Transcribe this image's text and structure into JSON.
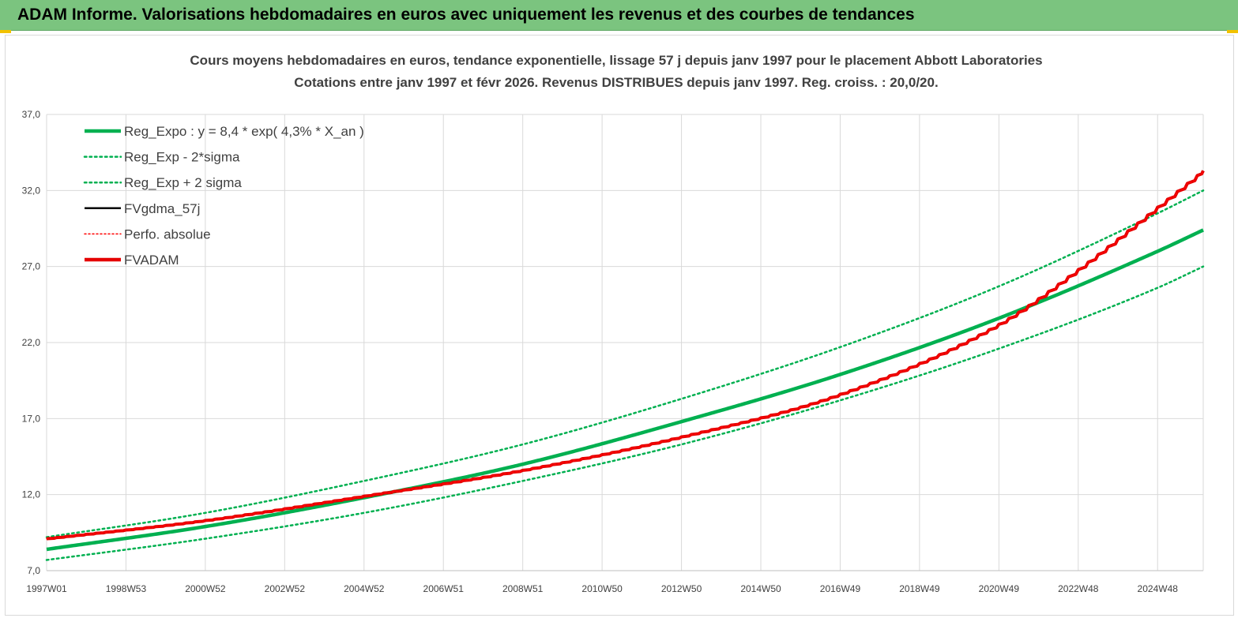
{
  "header": {
    "title": "ADAM Informe. Valorisations hebdomadaires en euros avec uniquement les revenus et des courbes de tendances"
  },
  "colors": {
    "header_bg": "#7bc47f",
    "trend_green": "#00b050",
    "fv_black": "#000000",
    "fvadam_red": "#e50000",
    "perfo_red": "#ff0000",
    "grid": "#d9d9d9",
    "text": "#404040"
  },
  "chart_data": {
    "type": "line",
    "title_lines": [
      "Cours moyens hebdomadaires en euros, tendance exponentielle, lissage 57 j depuis janv 1997 pour le placement Abbott Laboratories",
      "Cotations entre janv 1997 et févr 2026. Revenus DISTRIBUES depuis janv 1997. Reg. croiss. : 20,0/20."
    ],
    "x_tick_labels": [
      "1997W01",
      "1998W53",
      "2000W52",
      "2002W52",
      "2004W52",
      "2006W51",
      "2008W51",
      "2010W50",
      "2012W50",
      "2014W50",
      "2016W49",
      "2018W49",
      "2020W49",
      "2022W48",
      "2024W48"
    ],
    "x_tick_years": [
      1997.0,
      1999.0,
      2001.0,
      2003.0,
      2005.0,
      2007.0,
      2009.0,
      2011.0,
      2013.0,
      2015.0,
      2017.0,
      2019.0,
      2021.0,
      2023.0,
      2025.0
    ],
    "x_range": [
      1997.0,
      2026.15
    ],
    "y_tick_labels": [
      "7,0",
      "12,0",
      "17,0",
      "22,0",
      "27,0",
      "32,0",
      "37,0"
    ],
    "ylim": [
      7.0,
      37.0
    ],
    "grid": true,
    "legend_position": "top-left",
    "legend": [
      {
        "label": "Reg_Expo : y = 8,4 * exp( 4,3% *  X_an )",
        "style": "solid-thick",
        "color": "#00b050"
      },
      {
        "label": "Reg_Exp - 2*sigma",
        "style": "dotted",
        "color": "#00b050"
      },
      {
        "label": "Reg_Exp + 2 sigma",
        "style": "dotted",
        "color": "#00b050"
      },
      {
        "label": "FVgdma_57j",
        "style": "solid",
        "color": "#000000"
      },
      {
        "label": "Perfo. absolue",
        "style": "dotted-thin",
        "color": "#ff0000"
      },
      {
        "label": "FVADAM",
        "style": "solid-thick",
        "color": "#e50000"
      }
    ],
    "series": [
      {
        "name": "Reg_Expo : y = 8,4 * exp( 4,3% *  X_an )",
        "x": [
          1997.0,
          2001.0,
          2005.0,
          2009.0,
          2013.0,
          2017.0,
          2021.0,
          2025.0,
          2026.15
        ],
        "y": [
          8.4,
          9.9,
          11.8,
          14.0,
          16.8,
          19.9,
          23.6,
          28.0,
          29.4
        ]
      },
      {
        "name": "Reg_Exp - 2*sigma",
        "x": [
          1997.0,
          2001.0,
          2005.0,
          2009.0,
          2013.0,
          2017.0,
          2021.0,
          2025.0,
          2026.15
        ],
        "y": [
          7.7,
          9.1,
          10.8,
          12.9,
          15.3,
          18.2,
          21.6,
          25.6,
          27.0
        ]
      },
      {
        "name": "Reg_Exp + 2 sigma",
        "x": [
          1997.0,
          2001.0,
          2005.0,
          2009.0,
          2013.0,
          2017.0,
          2021.0,
          2025.0,
          2026.15
        ],
        "y": [
          9.2,
          10.8,
          12.9,
          15.3,
          18.3,
          21.7,
          25.7,
          30.5,
          32.0
        ]
      },
      {
        "name": "FVgdma_57j",
        "x": [
          1997.0,
          2001.0,
          2005.0,
          2009.0,
          2013.0,
          2017.0,
          2021.0,
          2023.0,
          2025.0,
          2026.15
        ],
        "y": [
          9.1,
          10.3,
          11.9,
          13.6,
          15.8,
          18.6,
          23.2,
          26.8,
          30.9,
          33.3
        ]
      },
      {
        "name": "Perfo. absolue",
        "x": [
          1997.0,
          2001.0,
          2005.0,
          2009.0,
          2013.0,
          2017.0,
          2021.0,
          2023.0,
          2025.0,
          2026.15
        ],
        "y": [
          9.1,
          10.3,
          11.9,
          13.6,
          15.8,
          18.6,
          23.2,
          26.8,
          30.9,
          33.3
        ]
      },
      {
        "name": "FVADAM",
        "x": [
          1997.0,
          2001.0,
          2005.0,
          2009.0,
          2013.0,
          2017.0,
          2021.0,
          2023.0,
          2025.0,
          2026.15
        ],
        "y": [
          9.1,
          10.3,
          11.9,
          13.6,
          15.8,
          18.6,
          23.2,
          26.8,
          30.9,
          33.3
        ]
      }
    ]
  }
}
